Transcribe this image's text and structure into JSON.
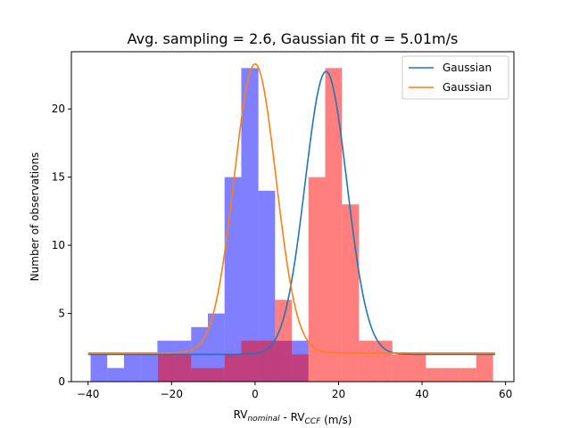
{
  "chart_data": {
    "type": "histogram",
    "title": "Avg. sampling = 2.6, Gaussian fit σ = 5.01m/s",
    "xlabel": {
      "parts": [
        {
          "text": "RV",
          "style": "normal"
        },
        {
          "text": "nominal",
          "style": "sub"
        },
        {
          "text": " - RV",
          "style": "normal"
        },
        {
          "text": "CCF",
          "style": "sub"
        },
        {
          "text": " (m/s)",
          "style": "normal"
        }
      ]
    },
    "ylabel": "Number of observations",
    "xlim": [
      -44,
      62
    ],
    "ylim": [
      0,
      24.2
    ],
    "xticks": [
      -40,
      -20,
      0,
      20,
      40,
      60
    ],
    "yticks": [
      0,
      5,
      10,
      15,
      20
    ],
    "legend": {
      "placement": "top-right",
      "entries": [
        {
          "label": "Gaussian",
          "color": "#1f77b4"
        },
        {
          "label": "Gaussian",
          "color": "#ff7f0e"
        }
      ]
    },
    "histograms": [
      {
        "color": "#0000ff",
        "alpha": 0.5,
        "bin_edges": [
          -39.4,
          -35.4,
          -31.4,
          -27.4,
          -23.4,
          -19.4,
          -15.3,
          -11.3,
          -7.3,
          -3.3,
          0.8,
          4.8,
          8.8,
          12.8,
          16.8,
          20.8,
          24.9,
          28.9,
          32.9,
          36.9,
          40.9
        ],
        "counts": [
          2,
          1,
          2,
          2,
          3,
          3,
          4,
          5,
          15,
          23,
          14,
          3,
          3,
          0,
          0,
          0,
          0,
          0,
          0,
          0
        ]
      },
      {
        "color": "#ff0000",
        "alpha": 0.5,
        "bin_edges": [
          -23.3,
          -19.3,
          -15.3,
          -11.3,
          -7.3,
          -3.3,
          0.8,
          4.8,
          8.8,
          12.8,
          16.8,
          20.8,
          24.9,
          28.9,
          32.9,
          36.9,
          40.9,
          45.0,
          49.0,
          53.0,
          57.0
        ],
        "counts": [
          2,
          2,
          1,
          1,
          2,
          3,
          3,
          6,
          2,
          15,
          23,
          13,
          3,
          3,
          2,
          2,
          1,
          1,
          1,
          2
        ]
      }
    ],
    "gaussian_fits": [
      {
        "color": "#1f77b4",
        "amplitude": 20.75,
        "mean": 17.0,
        "sigma": 5.01,
        "offset": 2.0,
        "x_range": [
          -40,
          57.5
        ]
      },
      {
        "color": "#ff7f0e",
        "amplitude": 21.2,
        "mean": 0.0,
        "sigma": 5.01,
        "offset": 2.1,
        "x_range": [
          -40,
          57.5
        ]
      }
    ]
  }
}
